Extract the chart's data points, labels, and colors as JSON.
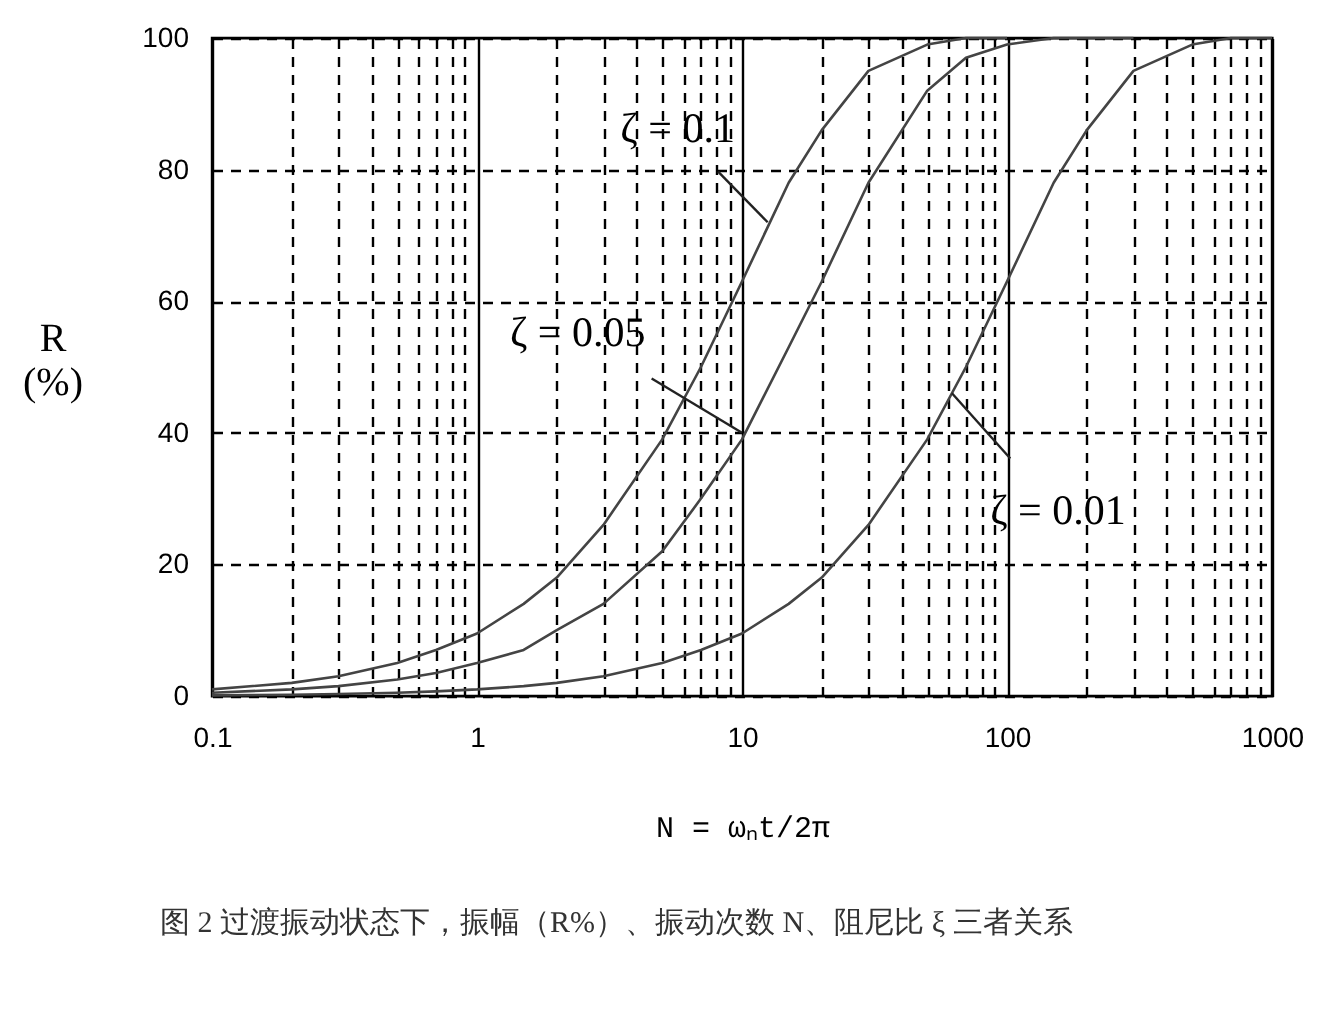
{
  "chart_data": {
    "type": "line",
    "xlabel": "N = ωₙt/2π",
    "ylabel": "R (%)",
    "x": [
      0.1,
      0.2,
      0.3,
      0.5,
      0.7,
      1,
      1.5,
      2,
      3,
      5,
      7,
      10,
      15,
      20,
      30,
      50,
      70,
      100,
      150,
      200,
      300,
      500,
      700,
      1000
    ],
    "series": [
      {
        "color": "#444444",
        "values": [
          1,
          2,
          3,
          5,
          7,
          9.5,
          14,
          18,
          26,
          39,
          50,
          63,
          78,
          86,
          95,
          99,
          100,
          100,
          null,
          null,
          null,
          null,
          null,
          null
        ]
      },
      {
        "color": "#444444",
        "values": [
          0.5,
          1,
          1.5,
          2.5,
          3.5,
          5,
          7,
          10,
          14,
          22,
          30,
          39,
          53,
          63,
          78,
          92,
          97,
          99,
          100,
          100,
          100,
          null,
          null,
          null
        ]
      },
      {
        "color": "#444444",
        "values": [
          0.1,
          0.2,
          0.3,
          0.5,
          0.7,
          1,
          1.5,
          2,
          3,
          5,
          7,
          9.5,
          14,
          18,
          26,
          39,
          50,
          63,
          78,
          86,
          95,
          99,
          100,
          100
        ]
      }
    ],
    "annotations": [
      {
        "text": "ζ = 0.1",
        "x": 12.5,
        "y": 72
      },
      {
        "text": "ζ = 0.05",
        "x": 10,
        "y": 40
      },
      {
        "text": "ζ = 0.01",
        "x": 62,
        "y": 46
      },
      "图 2 过渡振动状态下，振幅（R%）、振动次数 N、阻尼比 ξ 三者关系"
    ],
    "log": "x",
    "xlim": [
      0.1,
      1000
    ],
    "ylim": [
      0,
      100
    ],
    "xticks": [
      0.1,
      {
        "value": 0.2,
        "label": null
      },
      {
        "value": 0.3,
        "label": null
      },
      {
        "value": 0.4,
        "label": null
      },
      {
        "value": 0.5,
        "label": null
      },
      {
        "value": 0.6,
        "label": null
      },
      {
        "value": 0.7,
        "label": null
      },
      {
        "value": 0.8,
        "label": null
      },
      {
        "value": 0.9,
        "label": null
      },
      1,
      {
        "value": 2,
        "label": null
      },
      {
        "value": 3,
        "label": null
      },
      {
        "value": 4,
        "label": null
      },
      {
        "value": 5,
        "label": null
      },
      {
        "value": 6,
        "label": null
      },
      {
        "value": 7,
        "label": null
      },
      {
        "value": 8,
        "label": null
      },
      {
        "value": 9,
        "label": null
      },
      10,
      {
        "value": 20,
        "label": null
      },
      {
        "value": 30,
        "label": null
      },
      {
        "value": 40,
        "label": null
      },
      {
        "value": 50,
        "label": null
      },
      {
        "value": 60,
        "label": null
      },
      {
        "value": 70,
        "label": null
      },
      {
        "value": 80,
        "label": null
      },
      {
        "value": 90,
        "label": null
      },
      100,
      {
        "value": 200,
        "label": null
      },
      {
        "value": 300,
        "label": null
      },
      {
        "value": 400,
        "label": null
      },
      {
        "value": 500,
        "label": null
      },
      {
        "value": 600,
        "label": null
      },
      {
        "value": 700,
        "label": null
      },
      {
        "value": 800,
        "label": null
      },
      {
        "value": 900,
        "label": null
      },
      1000
    ],
    "yticks": [
      0,
      20,
      40,
      60,
      80,
      100
    ],
    "grid": true,
    "line_style": "solid",
    "marker": "none"
  }
}
